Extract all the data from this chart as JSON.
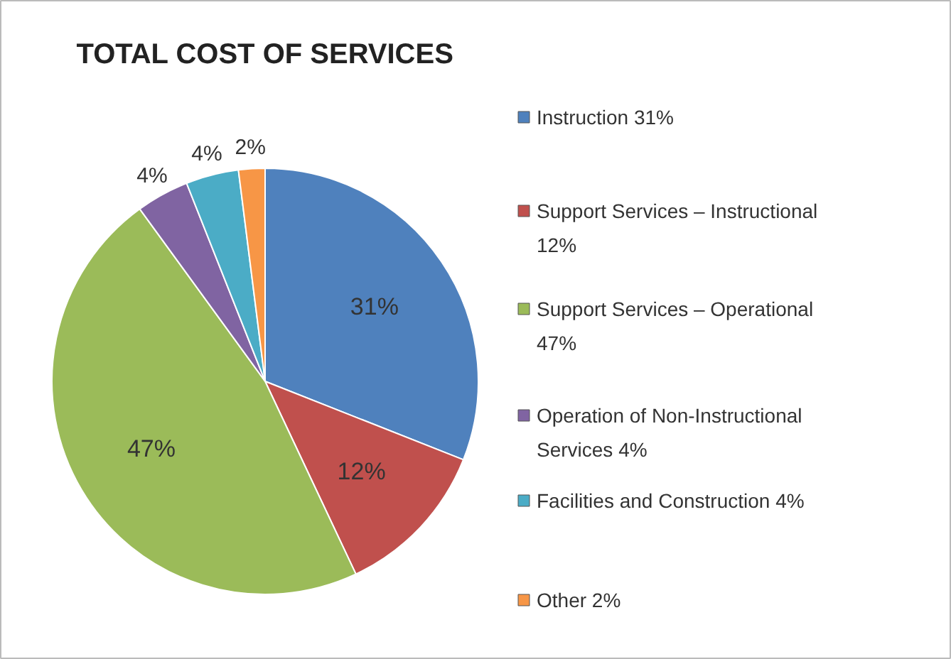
{
  "chart_data": {
    "type": "pie",
    "title": "TOTAL COST OF SERVICES",
    "categories": [
      "Instruction  31%",
      "Support Services – Instructional 12%",
      "Support Services – Operational 47%",
      "Operation of Non-Instructional Services  4%",
      "Facilities and Construction   4%",
      "Other 2%"
    ],
    "values": [
      31,
      12,
      47,
      4,
      4,
      2
    ],
    "colors": [
      "#4f81bd",
      "#c0504d",
      "#9bbb59",
      "#8064a2",
      "#4bacc6",
      "#f79646"
    ],
    "value_labels": [
      "31%",
      "12%",
      "47%",
      "4%",
      "4%",
      "2%"
    ],
    "legend": "right"
  }
}
